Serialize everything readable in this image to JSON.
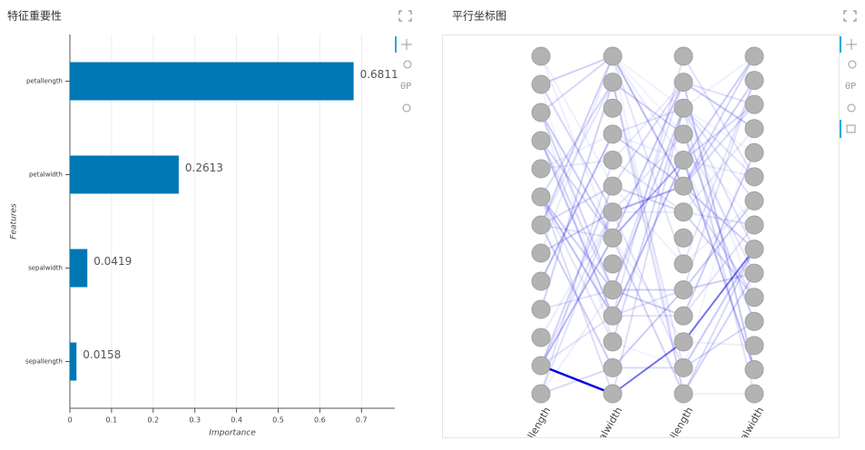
{
  "chart_data": [
    {
      "type": "barh",
      "title": "特征重要性",
      "categories": [
        "petallength",
        "petalwidth",
        "sepalwidth",
        "sepallength"
      ],
      "values": [
        0.6811,
        0.2613,
        0.0419,
        0.0158
      ],
      "color": "#0077b5",
      "xlabel": "Importance",
      "ylabel": "Features",
      "xlim": [
        0,
        0.78
      ],
      "xticks": [
        0,
        0.1,
        0.2,
        0.3,
        0.4,
        0.5,
        0.6,
        0.7
      ],
      "grid": true
    },
    {
      "type": "parallel",
      "title": "平行坐标图",
      "axes": [
        "petallength",
        "petalwidth",
        "sepallength",
        "sepalwidth"
      ]
    }
  ]
}
